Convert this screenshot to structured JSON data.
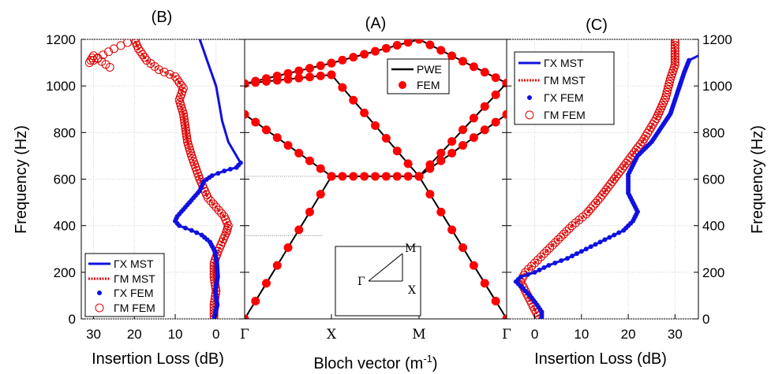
{
  "chart_data": [
    {
      "id": "A",
      "type": "line",
      "title": "(A)",
      "xlabel": "Bloch vector (m",
      "xlabel_sup": "-1",
      "xlabel_end": ")",
      "ylabel": "",
      "ylim": [
        0,
        1200
      ],
      "x_ticks": [
        "Γ",
        "X",
        "M",
        "Γ"
      ],
      "legend": {
        "position": "top-right",
        "entries": [
          {
            "label": "PWE",
            "style": "line",
            "color": "#000000"
          },
          {
            "label": "FEM",
            "style": "dot",
            "color": "#ff0000"
          }
        ]
      },
      "inset": {
        "labels": [
          "Γ",
          "X",
          "M"
        ]
      },
      "series": [
        {
          "name": "PWE",
          "color": "#000000",
          "bands": [
            {
              "x": [
                0,
                1
              ],
              "y": [
                0,
                612
              ]
            },
            {
              "x": [
                1,
                2
              ],
              "y": [
                612,
                612
              ]
            },
            {
              "x": [
                2,
                3
              ],
              "y": [
                612,
                0
              ]
            },
            {
              "x": [
                0,
                1
              ],
              "y": [
                878,
                612
              ]
            },
            {
              "x": [
                0,
                1
              ],
              "y": [
                1010,
                1048
              ]
            },
            {
              "x": [
                0,
                1
              ],
              "y": [
                1010,
                1098
              ]
            },
            {
              "x": [
                1,
                2
              ],
              "y": [
                1048,
                612
              ]
            },
            {
              "x": [
                1,
                2
              ],
              "y": [
                1098,
                1200
              ]
            },
            {
              "x": [
                2,
                3
              ],
              "y": [
                612,
                1012
              ]
            },
            {
              "x": [
                2,
                3
              ],
              "y": [
                612,
                878
              ]
            },
            {
              "x": [
                2,
                3
              ],
              "y": [
                1200,
                1012
              ]
            }
          ]
        },
        {
          "name": "FEM",
          "color": "#ff0000"
        }
      ]
    },
    {
      "id": "B",
      "type": "line",
      "title": "(B)",
      "xlabel": "Insertion Loss (dB)",
      "ylabel": "Frequency (Hz)",
      "xlim": [
        33,
        -7
      ],
      "ylim": [
        0,
        1200
      ],
      "x_ticks": [
        30,
        20,
        10,
        0
      ],
      "y_ticks": [
        0,
        200,
        400,
        600,
        800,
        1000,
        1200
      ],
      "legend": {
        "position": "bottom-left",
        "entries": [
          {
            "label": "ΓX MST",
            "style": "line",
            "color": "#1010e0"
          },
          {
            "label": "ΓM MST",
            "style": "dashed",
            "color": "#dd0000"
          },
          {
            "label": "ΓX FEM",
            "style": "dot",
            "color": "#1010e0"
          },
          {
            "label": "ΓM FEM",
            "style": "circle",
            "color": "#dd0000"
          }
        ]
      },
      "series": [
        {
          "name": "ΓX MST",
          "color": "#1010e0",
          "points": [
            [
              0.5,
              0
            ],
            [
              -0.3,
              60
            ],
            [
              0.2,
              120
            ],
            [
              -0.4,
              180
            ],
            [
              -0.2,
              240
            ],
            [
              0.3,
              290
            ],
            [
              1.5,
              330
            ],
            [
              3.5,
              360
            ],
            [
              6,
              380
            ],
            [
              9,
              400
            ],
            [
              10,
              420
            ],
            [
              9.5,
              440
            ],
            [
              8,
              470
            ],
            [
              6,
              510
            ],
            [
              4,
              550
            ],
            [
              3,
              590
            ],
            [
              1,
              615
            ],
            [
              -2,
              635
            ],
            [
              -5,
              650
            ],
            [
              -6,
              670
            ],
            [
              -5,
              700
            ],
            [
              -3,
              760
            ],
            [
              -1.5,
              850
            ],
            [
              -0.5,
              950
            ],
            [
              0,
              1000
            ],
            [
              1,
              1050
            ],
            [
              2,
              1100
            ],
            [
              3,
              1150
            ],
            [
              4,
              1200
            ]
          ]
        },
        {
          "name": "ΓM MST",
          "color": "#dd0000",
          "points": [
            [
              0.5,
              0
            ],
            [
              0.5,
              60
            ],
            [
              0,
              120
            ],
            [
              0.5,
              180
            ],
            [
              0.5,
              240
            ],
            [
              -0.5,
              290
            ],
            [
              -1.5,
              330
            ],
            [
              -2.5,
              370
            ],
            [
              -3,
              400
            ],
            [
              -2,
              440
            ],
            [
              0,
              480
            ],
            [
              2,
              520
            ],
            [
              3,
              560
            ],
            [
              4,
              600
            ],
            [
              5,
              650
            ],
            [
              6,
              700
            ],
            [
              7,
              760
            ],
            [
              7.5,
              820
            ],
            [
              8,
              880
            ],
            [
              9,
              940
            ],
            [
              8,
              990
            ],
            [
              10,
              1040
            ],
            [
              14,
              1070
            ],
            [
              17,
              1110
            ],
            [
              19,
              1160
            ],
            [
              20,
              1200
            ]
          ]
        },
        {
          "name": "ΓX FEM",
          "color": "#1010e0",
          "points": [
            [
              0.5,
              0
            ],
            [
              -0.3,
              60
            ],
            [
              0.2,
              120
            ],
            [
              -0.4,
              180
            ],
            [
              -0.2,
              240
            ],
            [
              0.3,
              290
            ],
            [
              1.5,
              330
            ],
            [
              3.5,
              360
            ],
            [
              6,
              380
            ],
            [
              9,
              400
            ],
            [
              10,
              420
            ],
            [
              9.5,
              440
            ],
            [
              8,
              470
            ],
            [
              6,
              510
            ],
            [
              4,
              550
            ],
            [
              3,
              590
            ],
            [
              1,
              615
            ],
            [
              -2,
              635
            ],
            [
              -5,
              650
            ],
            [
              -6,
              670
            ]
          ]
        },
        {
          "name": "ΓM FEM",
          "color": "#dd0000",
          "points": [
            [
              0.5,
              0
            ],
            [
              0.5,
              60
            ],
            [
              0,
              120
            ],
            [
              0.5,
              180
            ],
            [
              0.5,
              240
            ],
            [
              -0.5,
              290
            ],
            [
              -1.5,
              330
            ],
            [
              -2.5,
              370
            ],
            [
              -3,
              400
            ],
            [
              -2,
              440
            ],
            [
              0,
              480
            ],
            [
              2,
              520
            ],
            [
              3,
              560
            ],
            [
              4,
              600
            ],
            [
              5,
              650
            ],
            [
              6,
              700
            ],
            [
              7,
              760
            ],
            [
              7.5,
              820
            ],
            [
              8,
              880
            ],
            [
              9,
              940
            ],
            [
              8,
              990
            ],
            [
              10,
              1040
            ],
            [
              14,
              1070
            ],
            [
              17,
              1110
            ],
            [
              19,
              1160
            ],
            [
              20,
              1200
            ],
            [
              25,
              1160
            ],
            [
              29,
              1120
            ],
            [
              31,
              1100
            ],
            [
              30,
              1130
            ],
            [
              26,
              1080
            ]
          ]
        }
      ]
    },
    {
      "id": "C",
      "type": "line",
      "title": "(C)",
      "xlabel": "Insertion Loss (dB)",
      "ylabel": "Frequency (Hz)",
      "xlim": [
        -6,
        35
      ],
      "ylim": [
        0,
        1200
      ],
      "x_ticks": [
        0,
        10,
        20,
        30
      ],
      "y_ticks": [
        0,
        200,
        400,
        600,
        800,
        1000,
        1200
      ],
      "legend": {
        "position": "top-left",
        "entries": [
          {
            "label": "ΓX MST",
            "style": "line",
            "color": "#1010e0"
          },
          {
            "label": "ΓM MST",
            "style": "dashed",
            "color": "#dd0000"
          },
          {
            "label": "ΓX FEM",
            "style": "dot",
            "color": "#1010e0"
          },
          {
            "label": "ΓM FEM",
            "style": "circle",
            "color": "#dd0000"
          }
        ]
      },
      "series": [
        {
          "name": "ΓX MST",
          "color": "#1010e0",
          "points": [
            [
              1.5,
              0
            ],
            [
              1.5,
              30
            ],
            [
              0.5,
              60
            ],
            [
              -1,
              100
            ],
            [
              -3,
              140
            ],
            [
              -4,
              160
            ],
            [
              -3,
              180
            ],
            [
              0,
              200
            ],
            [
              3,
              230
            ],
            [
              7,
              260
            ],
            [
              11,
              300
            ],
            [
              15,
              340
            ],
            [
              19,
              380
            ],
            [
              21,
              420
            ],
            [
              22,
              460
            ],
            [
              21,
              500
            ],
            [
              20,
              540
            ],
            [
              20,
              580
            ],
            [
              20,
              620
            ],
            [
              21,
              660
            ],
            [
              22,
              700
            ],
            [
              25,
              760
            ],
            [
              27,
              820
            ],
            [
              29,
              880
            ],
            [
              30,
              940
            ],
            [
              31,
              1000
            ],
            [
              32,
              1060
            ],
            [
              33,
              1110
            ],
            [
              35,
              1130
            ]
          ]
        },
        {
          "name": "ΓM MST",
          "color": "#dd0000",
          "points": [
            [
              1,
              0
            ],
            [
              0,
              40
            ],
            [
              -1,
              80
            ],
            [
              -2,
              120
            ],
            [
              -3,
              160
            ],
            [
              -2,
              200
            ],
            [
              0,
              240
            ],
            [
              2,
              280
            ],
            [
              5,
              340
            ],
            [
              8,
              400
            ],
            [
              11,
              450
            ],
            [
              14,
              520
            ],
            [
              17,
              600
            ],
            [
              20,
              680
            ],
            [
              23,
              760
            ],
            [
              26,
              860
            ],
            [
              28,
              950
            ],
            [
              29,
              1030
            ],
            [
              30,
              1090
            ],
            [
              30,
              1150
            ],
            [
              29.5,
              1200
            ]
          ]
        },
        {
          "name": "ΓX FEM",
          "color": "#1010e0",
          "points": [
            [
              1.5,
              0
            ],
            [
              1.5,
              30
            ],
            [
              0.5,
              60
            ],
            [
              -1,
              100
            ],
            [
              -3,
              140
            ],
            [
              -4,
              160
            ],
            [
              -3,
              180
            ],
            [
              0,
              200
            ],
            [
              3,
              230
            ],
            [
              7,
              260
            ],
            [
              11,
              300
            ],
            [
              15,
              340
            ],
            [
              19,
              380
            ],
            [
              21,
              420
            ],
            [
              22,
              460
            ],
            [
              21,
              500
            ],
            [
              20,
              540
            ],
            [
              20,
              580
            ],
            [
              20,
              620
            ],
            [
              21,
              660
            ],
            [
              22,
              700
            ],
            [
              25,
              760
            ],
            [
              27,
              820
            ],
            [
              29,
              880
            ],
            [
              30,
              940
            ],
            [
              31,
              1000
            ],
            [
              32,
              1060
            ],
            [
              33,
              1110
            ]
          ]
        },
        {
          "name": "ΓM FEM",
          "color": "#dd0000",
          "points": [
            [
              1,
              0
            ],
            [
              0,
              40
            ],
            [
              -1,
              80
            ],
            [
              -2,
              120
            ],
            [
              -3,
              160
            ],
            [
              -2,
              200
            ],
            [
              0,
              240
            ],
            [
              2,
              280
            ],
            [
              5,
              340
            ],
            [
              8,
              400
            ],
            [
              11,
              450
            ],
            [
              14,
              520
            ],
            [
              17,
              600
            ],
            [
              20,
              680
            ],
            [
              23,
              760
            ],
            [
              26,
              860
            ],
            [
              28,
              950
            ],
            [
              29,
              1030
            ],
            [
              30,
              1090
            ],
            [
              30,
              1150
            ],
            [
              30,
              1200
            ]
          ]
        }
      ]
    }
  ]
}
